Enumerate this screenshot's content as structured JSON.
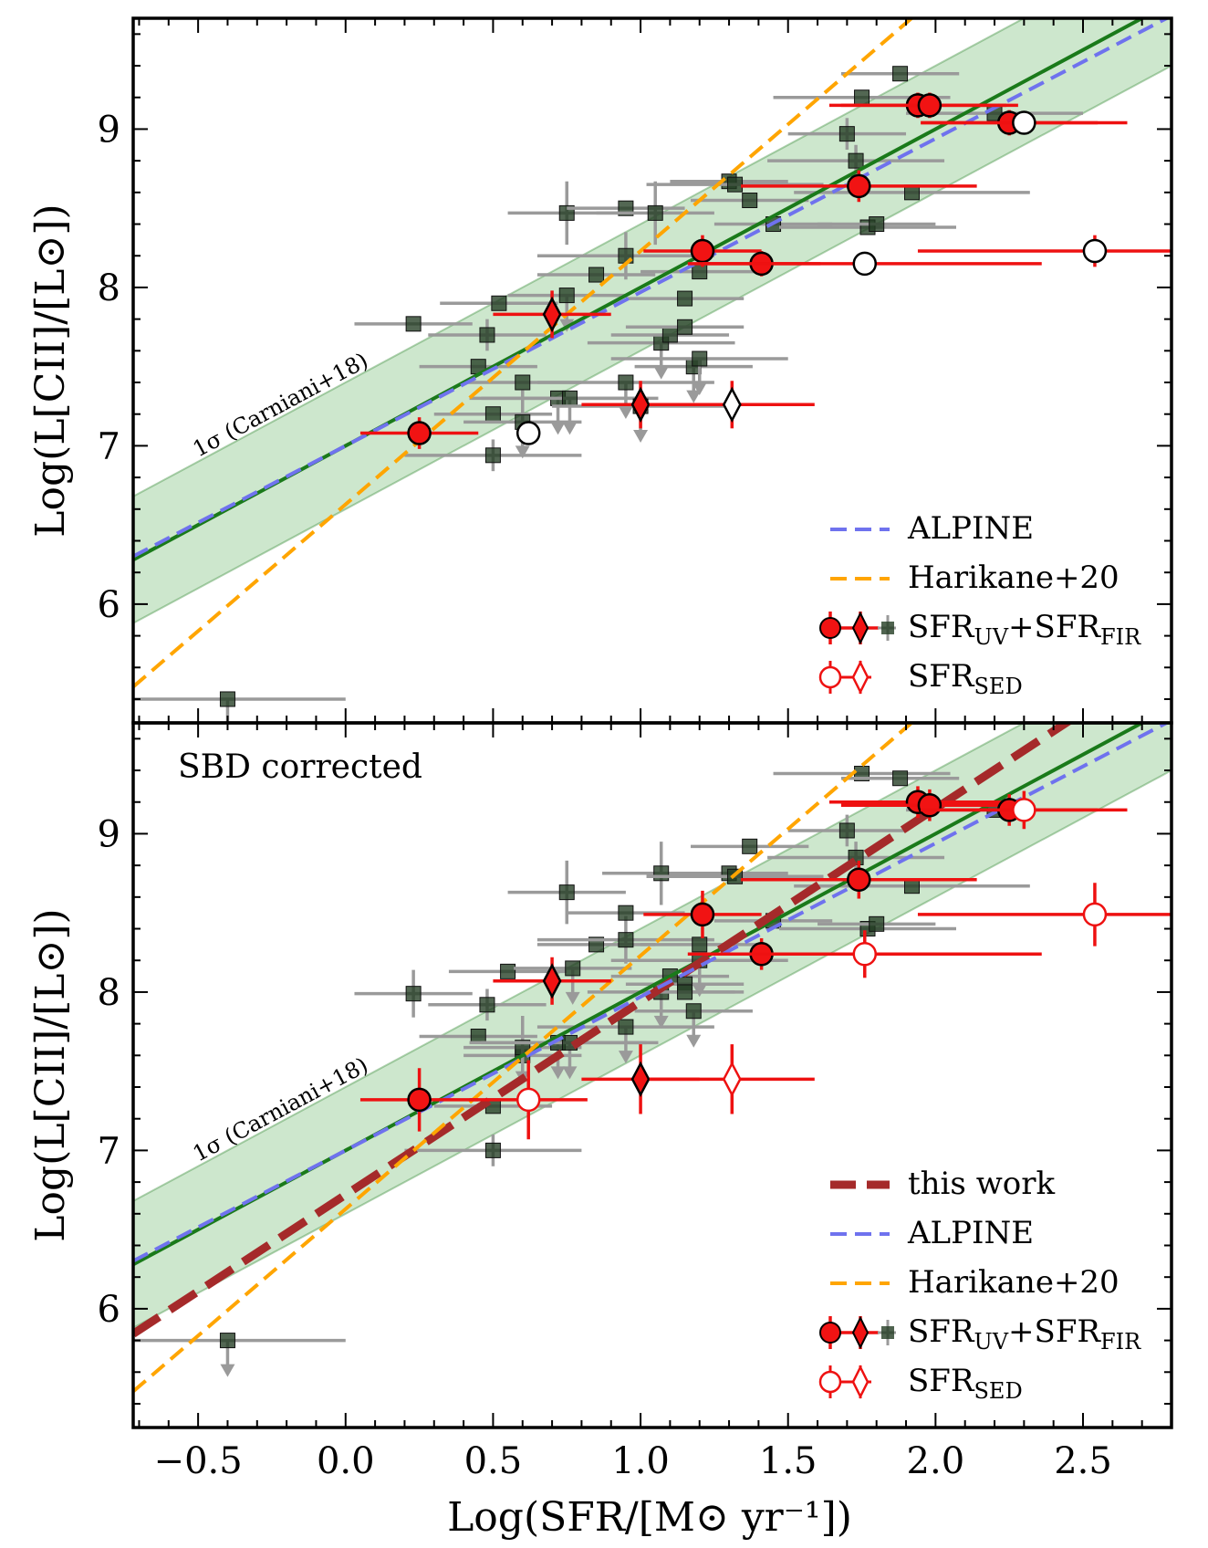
{
  "chart_data": {
    "type": "scatter",
    "xlabel": "Log(SFR/[M⊙ yr⁻¹])",
    "xlim": [
      -0.72,
      2.8
    ],
    "x_ticks": [
      {
        "value": -0.5,
        "label": "−0.5"
      },
      {
        "value": 0.0,
        "label": "0.0"
      },
      {
        "value": 0.5,
        "label": "0.5"
      },
      {
        "value": 1.0,
        "label": "1.0"
      },
      {
        "value": 1.5,
        "label": "1.5"
      },
      {
        "value": 2.0,
        "label": "2.0"
      },
      {
        "value": 2.5,
        "label": "2.5"
      }
    ],
    "ylabel": "Log(L[CII]/[L⊙])",
    "ylim": [
      5.25,
      9.7
    ],
    "y_ticks": [
      {
        "value": 6,
        "label": "6"
      },
      {
        "value": 7,
        "label": "7"
      },
      {
        "value": 8,
        "label": "8"
      },
      {
        "value": 9,
        "label": "9"
      }
    ],
    "panels": [
      {
        "annotation": "",
        "band_label": "1σ (Carniani+18)",
        "band": {
          "intercept": 7.0,
          "slope": 1.0,
          "halfwidth": 0.4
        },
        "lines": [
          {
            "key": "green",
            "intercept": 7.0,
            "slope": 1.0,
            "color": "#1a7a1a",
            "style": "solid"
          },
          {
            "key": "alpine",
            "intercept": 7.0,
            "slope": 0.97,
            "color": "#6f72ee",
            "style": "dashed"
          },
          {
            "key": "harikane",
            "intercept": 6.63,
            "slope": 1.6,
            "color": "#ffa500",
            "style": "dashed"
          }
        ],
        "legend": [
          {
            "key": "alpine",
            "label": "ALPINE"
          },
          {
            "key": "harikane",
            "label": "Harikane+20"
          },
          {
            "key": "uvfir",
            "label": "SFR",
            "sub": "UV",
            "mid": "+SFR",
            "sub2": "FIR"
          },
          {
            "key": "sed",
            "label": "SFR",
            "sub": "SED"
          }
        ],
        "lit_points": [
          [
            -0.4,
            5.4,
            0.4,
            0,
            true
          ],
          [
            0.23,
            7.77,
            0.2,
            0,
            false
          ],
          [
            0.48,
            7.7,
            0.2,
            0.1,
            false
          ],
          [
            0.52,
            7.9,
            0.2,
            0,
            false
          ],
          [
            0.45,
            7.5,
            0.2,
            0,
            false
          ],
          [
            0.5,
            7.2,
            0.2,
            0,
            false
          ],
          [
            0.5,
            6.94,
            0.3,
            0.1,
            false
          ],
          [
            0.6,
            7.4,
            0.2,
            0,
            false
          ],
          [
            0.6,
            7.15,
            0.2,
            0.2,
            true
          ],
          [
            0.72,
            7.3,
            0.3,
            0,
            true
          ],
          [
            0.76,
            7.3,
            0.3,
            0,
            true
          ],
          [
            0.75,
            8.47,
            0.2,
            0.2,
            false
          ],
          [
            0.85,
            8.08,
            0.2,
            0,
            false
          ],
          [
            0.95,
            8.2,
            0.3,
            0.15,
            false
          ],
          [
            0.95,
            7.4,
            0.3,
            0,
            true
          ],
          [
            0.95,
            8.5,
            0.2,
            0,
            false
          ],
          [
            0.75,
            7.95,
            0.2,
            0,
            true
          ],
          [
            1.05,
            8.47,
            0.2,
            0.2,
            false
          ],
          [
            1.07,
            7.65,
            0.25,
            0,
            true
          ],
          [
            1.1,
            7.7,
            0.2,
            0,
            false
          ],
          [
            1.15,
            7.75,
            0.2,
            0,
            false
          ],
          [
            1.18,
            7.5,
            0.2,
            0,
            true
          ],
          [
            1.15,
            7.93,
            0.2,
            0,
            false
          ],
          [
            1.2,
            8.1,
            0.2,
            0,
            false
          ],
          [
            1.3,
            8.67,
            0.2,
            0,
            false
          ],
          [
            1.32,
            8.65,
            0.3,
            0,
            false
          ],
          [
            1.37,
            8.55,
            0.2,
            0,
            false
          ],
          [
            1.45,
            8.4,
            0.2,
            0,
            false
          ],
          [
            1.7,
            8.97,
            0.2,
            0.1,
            false
          ],
          [
            1.73,
            8.8,
            0.3,
            0.1,
            false
          ],
          [
            1.75,
            9.2,
            0.3,
            0,
            false
          ],
          [
            1.77,
            8.38,
            0.3,
            0,
            false
          ],
          [
            1.8,
            8.4,
            0.2,
            0,
            false
          ],
          [
            1.88,
            9.35,
            0.2,
            0,
            false
          ],
          [
            1.92,
            8.6,
            0.4,
            0,
            false
          ],
          [
            2.2,
            9.1,
            0.3,
            0,
            false
          ],
          [
            1.2,
            7.55,
            0.3,
            0,
            true
          ],
          [
            1.0,
            7.25,
            0.3,
            0,
            true
          ]
        ],
        "red_points": [
          {
            "x": 0.25,
            "y": 7.08,
            "xerr": 0.2,
            "yerr": 0.1,
            "shape": "circle",
            "fill": "red"
          },
          {
            "x": 0.62,
            "y": 7.08,
            "xerr": 0.0,
            "yerr": 0.0,
            "shape": "circle",
            "fill": "white"
          },
          {
            "x": 0.7,
            "y": 7.83,
            "xerr": 0.2,
            "yerr": 0.15,
            "shape": "diamond",
            "fill": "red"
          },
          {
            "x": 1.0,
            "y": 7.26,
            "xerr": 0.2,
            "yerr": 0.15,
            "shape": "diamond",
            "fill": "red"
          },
          {
            "x": 1.31,
            "y": 7.26,
            "xerr": 0.28,
            "yerr": 0.15,
            "shape": "diamond",
            "fill": "white"
          },
          {
            "x": 1.21,
            "y": 8.23,
            "xerr": 0.2,
            "yerr": 0.1,
            "shape": "circle",
            "fill": "red"
          },
          {
            "x": 1.41,
            "y": 8.15,
            "xerr": 0.2,
            "yerr": 0.08,
            "shape": "circle",
            "fill": "red"
          },
          {
            "x": 1.76,
            "y": 8.15,
            "xerr": 0.6,
            "yerr": 0.0,
            "shape": "circle",
            "fill": "white"
          },
          {
            "x": 1.74,
            "y": 8.64,
            "xerr": 0.4,
            "yerr": 0.1,
            "shape": "circle",
            "fill": "red"
          },
          {
            "x": 1.94,
            "y": 9.15,
            "xerr": 0.3,
            "yerr": 0.08,
            "shape": "circle",
            "fill": "red"
          },
          {
            "x": 1.98,
            "y": 9.15,
            "xerr": 0.3,
            "yerr": 0.08,
            "shape": "circle",
            "fill": "red"
          },
          {
            "x": 2.25,
            "y": 9.04,
            "xerr": 0.3,
            "yerr": 0.08,
            "shape": "circle",
            "fill": "red"
          },
          {
            "x": 2.3,
            "y": 9.04,
            "xerr": 0.35,
            "yerr": 0.0,
            "shape": "circle",
            "fill": "white"
          },
          {
            "x": 2.54,
            "y": 8.23,
            "xerr": 0.6,
            "yerr": 0.1,
            "shape": "circle",
            "fill": "white"
          }
        ]
      },
      {
        "annotation": "SBD corrected",
        "band_label": "1σ (Carniani+18)",
        "band": {
          "intercept": 7.0,
          "slope": 1.0,
          "halfwidth": 0.4
        },
        "lines": [
          {
            "key": "green",
            "intercept": 7.0,
            "slope": 1.0,
            "color": "#1a7a1a",
            "style": "solid"
          },
          {
            "key": "thiswork",
            "intercept": 6.72,
            "slope": 1.22,
            "color": "#a52a2a",
            "style": "thickdashed"
          },
          {
            "key": "alpine",
            "intercept": 7.0,
            "slope": 0.97,
            "color": "#6f72ee",
            "style": "dashed"
          },
          {
            "key": "harikane",
            "intercept": 6.63,
            "slope": 1.6,
            "color": "#ffa500",
            "style": "dashed"
          }
        ],
        "legend": [
          {
            "key": "thiswork",
            "label": "this work"
          },
          {
            "key": "alpine",
            "label": "ALPINE"
          },
          {
            "key": "harikane",
            "label": "Harikane+20"
          },
          {
            "key": "uvfir",
            "label": "SFR",
            "sub": "UV",
            "mid": "+SFR",
            "sub2": "FIR"
          },
          {
            "key": "sed",
            "label": "SFR",
            "sub": "SED"
          }
        ],
        "lit_points": [
          [
            -0.4,
            5.8,
            0.4,
            0,
            true
          ],
          [
            0.23,
            7.99,
            0.2,
            0.15,
            false
          ],
          [
            0.48,
            7.92,
            0.2,
            0.1,
            false
          ],
          [
            0.55,
            8.13,
            0.2,
            0,
            false
          ],
          [
            0.45,
            7.72,
            0.2,
            0,
            false
          ],
          [
            0.5,
            7.28,
            0.2,
            0,
            false
          ],
          [
            0.5,
            7.0,
            0.3,
            0.1,
            false
          ],
          [
            0.6,
            7.6,
            0.2,
            0,
            false
          ],
          [
            0.6,
            7.65,
            0.2,
            0.2,
            true
          ],
          [
            0.72,
            7.68,
            0.3,
            0,
            true
          ],
          [
            0.76,
            7.68,
            0.3,
            0,
            true
          ],
          [
            0.75,
            8.63,
            0.2,
            0.2,
            false
          ],
          [
            0.85,
            8.3,
            0.2,
            0,
            false
          ],
          [
            0.95,
            8.33,
            0.3,
            0.15,
            false
          ],
          [
            0.95,
            7.78,
            0.3,
            0,
            true
          ],
          [
            0.95,
            8.5,
            0.2,
            0,
            false
          ],
          [
            0.77,
            8.15,
            0.2,
            0,
            true
          ],
          [
            1.07,
            8.75,
            0.2,
            0.2,
            false
          ],
          [
            1.07,
            8.0,
            0.25,
            0,
            true
          ],
          [
            1.1,
            8.1,
            0.2,
            0,
            false
          ],
          [
            1.15,
            8.05,
            0.2,
            0,
            false
          ],
          [
            1.18,
            7.88,
            0.2,
            0,
            true
          ],
          [
            1.15,
            8.0,
            0.2,
            0,
            false
          ],
          [
            1.2,
            8.3,
            0.2,
            0,
            false
          ],
          [
            1.3,
            8.75,
            0.2,
            0,
            false
          ],
          [
            1.32,
            8.73,
            0.3,
            0,
            false
          ],
          [
            1.37,
            8.92,
            0.2,
            0,
            false
          ],
          [
            1.45,
            8.45,
            0.2,
            0,
            false
          ],
          [
            1.7,
            9.02,
            0.2,
            0.1,
            false
          ],
          [
            1.73,
            8.85,
            0.3,
            0.1,
            false
          ],
          [
            1.75,
            9.38,
            0.3,
            0,
            false
          ],
          [
            1.77,
            8.4,
            0.3,
            0,
            false
          ],
          [
            1.8,
            8.43,
            0.2,
            0,
            false
          ],
          [
            1.88,
            9.35,
            0.2,
            0,
            false
          ],
          [
            1.92,
            8.67,
            0.4,
            0,
            false
          ],
          [
            2.2,
            9.15,
            0.3,
            0,
            false
          ],
          [
            1.2,
            8.2,
            0.3,
            0,
            true
          ]
        ],
        "red_points": [
          {
            "x": 0.25,
            "y": 7.32,
            "xerr": 0.2,
            "yerr": 0.2,
            "shape": "circle",
            "fill": "red"
          },
          {
            "x": 0.62,
            "y": 7.32,
            "xerr": 0.2,
            "yerr": 0.25,
            "shape": "circle",
            "fill": "white"
          },
          {
            "x": 0.7,
            "y": 8.07,
            "xerr": 0.2,
            "yerr": 0.15,
            "shape": "diamond",
            "fill": "red"
          },
          {
            "x": 1.0,
            "y": 7.45,
            "xerr": 0.2,
            "yerr": 0.22,
            "shape": "diamond",
            "fill": "red"
          },
          {
            "x": 1.31,
            "y": 7.45,
            "xerr": 0.28,
            "yerr": 0.22,
            "shape": "diamond",
            "fill": "white"
          },
          {
            "x": 1.21,
            "y": 8.49,
            "xerr": 0.2,
            "yerr": 0.15,
            "shape": "circle",
            "fill": "red"
          },
          {
            "x": 1.41,
            "y": 8.24,
            "xerr": 0.2,
            "yerr": 0.1,
            "shape": "circle",
            "fill": "red"
          },
          {
            "x": 1.76,
            "y": 8.24,
            "xerr": 0.6,
            "yerr": 0.15,
            "shape": "circle",
            "fill": "white"
          },
          {
            "x": 1.74,
            "y": 8.71,
            "xerr": 0.4,
            "yerr": 0.12,
            "shape": "circle",
            "fill": "red"
          },
          {
            "x": 1.94,
            "y": 9.2,
            "xerr": 0.3,
            "yerr": 0.1,
            "shape": "circle",
            "fill": "red"
          },
          {
            "x": 1.98,
            "y": 9.18,
            "xerr": 0.3,
            "yerr": 0.1,
            "shape": "circle",
            "fill": "red"
          },
          {
            "x": 2.25,
            "y": 9.15,
            "xerr": 0.3,
            "yerr": 0.1,
            "shape": "circle",
            "fill": "red"
          },
          {
            "x": 2.3,
            "y": 9.15,
            "xerr": 0.35,
            "yerr": 0.12,
            "shape": "circle",
            "fill": "white"
          },
          {
            "x": 2.54,
            "y": 8.49,
            "xerr": 0.6,
            "yerr": 0.2,
            "shape": "circle",
            "fill": "white"
          }
        ]
      }
    ]
  }
}
